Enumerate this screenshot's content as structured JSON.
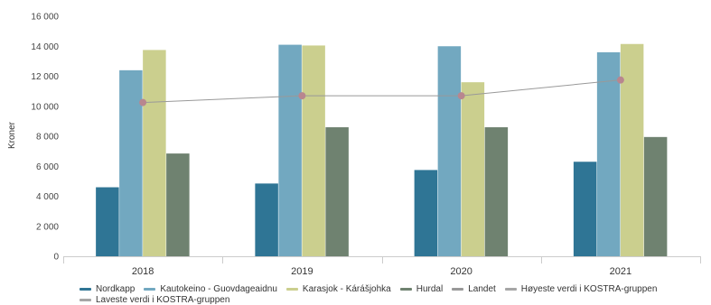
{
  "chart_data": {
    "type": "bar",
    "ylabel": "Kroner",
    "ylim": [
      0,
      16000
    ],
    "yticks": [
      0,
      2000,
      4000,
      6000,
      8000,
      10000,
      12000,
      14000,
      16000
    ],
    "ytick_labels": [
      "0",
      "2 000",
      "4 000",
      "6 000",
      "8 000",
      "10 000",
      "12 000",
      "14 000",
      "16 000"
    ],
    "categories": [
      "2018",
      "2019",
      "2020",
      "2021"
    ],
    "series": [
      {
        "name": "Nordkapp",
        "color": "#2f7595",
        "values": [
          4600,
          4850,
          5750,
          6300
        ]
      },
      {
        "name": "Kautokeino - Guovdageaidnu",
        "color": "#72a8c0",
        "values": [
          12400,
          14100,
          14000,
          13600
        ]
      },
      {
        "name": "Karasjok - Kárášjohka",
        "color": "#cbcf8e",
        "values": [
          13750,
          14050,
          11600,
          14150
        ]
      },
      {
        "name": "Hurdal",
        "color": "#6f8270",
        "values": [
          6850,
          8600,
          8600,
          7950
        ]
      }
    ],
    "line_series": [
      {
        "name": "Landet",
        "color": "#999999",
        "values": [
          10250,
          10700,
          10700,
          11750
        ]
      }
    ],
    "legend_extra": [
      {
        "name": "Høyeste verdi i KOSTRA-gruppen",
        "color": "#a6a6a6"
      },
      {
        "name": "Laveste verdi i KOSTRA-gruppen",
        "color": "#a6a6a6"
      }
    ],
    "grid": false,
    "legend_position": "bottom"
  }
}
